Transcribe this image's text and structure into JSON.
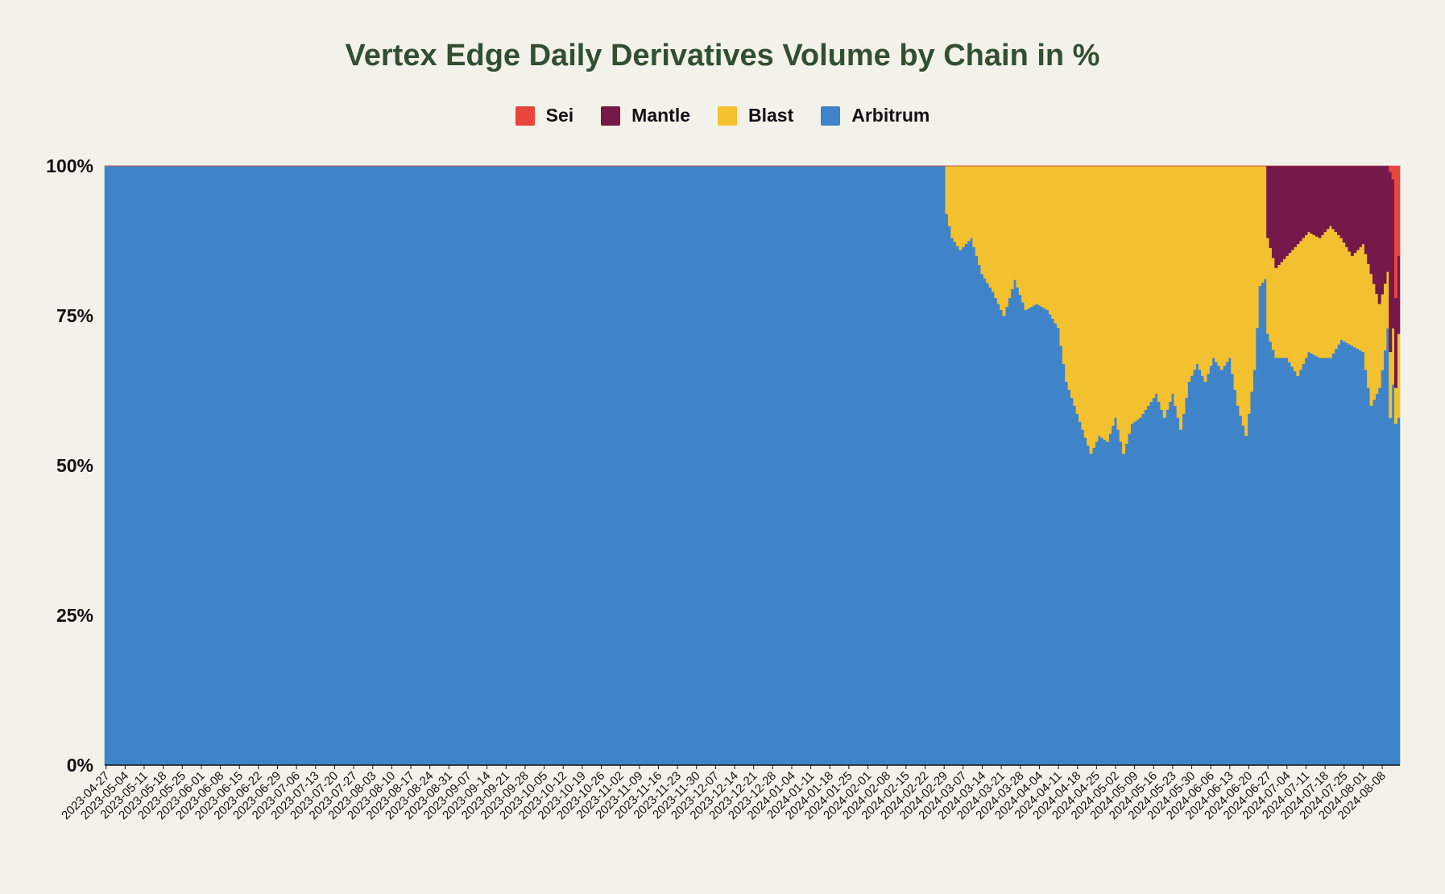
{
  "chart_data": {
    "type": "area",
    "stacked": "percent",
    "title": "Vertex Edge Daily Derivatives Volume by Chain in %",
    "xlabel": "",
    "ylabel": "",
    "ylim": [
      0,
      100
    ],
    "yticks": [
      "0%",
      "25%",
      "50%",
      "75%",
      "100%"
    ],
    "x_start": "2023-04-27",
    "x_end": "2024-08-14",
    "x_ticks": [
      "2023-04-27",
      "2023-05-04",
      "2023-05-11",
      "2023-05-18",
      "2023-05-25",
      "2023-06-01",
      "2023-06-08",
      "2023-06-15",
      "2023-06-22",
      "2023-06-29",
      "2023-07-06",
      "2023-07-13",
      "2023-07-20",
      "2023-07-27",
      "2023-08-03",
      "2023-08-10",
      "2023-08-17",
      "2023-08-24",
      "2023-08-31",
      "2023-09-07",
      "2023-09-14",
      "2023-09-21",
      "2023-09-28",
      "2023-10-05",
      "2023-10-12",
      "2023-10-19",
      "2023-10-26",
      "2023-11-02",
      "2023-11-09",
      "2023-11-16",
      "2023-11-23",
      "2023-11-30",
      "2023-12-07",
      "2023-12-14",
      "2023-12-21",
      "2023-12-28",
      "2024-01-04",
      "2024-01-11",
      "2024-01-18",
      "2024-01-25",
      "2024-02-01",
      "2024-02-08",
      "2024-02-15",
      "2024-02-22",
      "2024-02-29",
      "2024-03-07",
      "2024-03-14",
      "2024-03-21",
      "2024-03-28",
      "2024-04-04",
      "2024-04-11",
      "2024-04-18",
      "2024-04-25",
      "2024-05-02",
      "2024-05-09",
      "2024-05-16",
      "2024-05-23",
      "2024-05-30",
      "2024-06-06",
      "2024-06-13",
      "2024-06-20",
      "2024-06-27",
      "2024-07-04",
      "2024-07-11",
      "2024-07-18",
      "2024-07-25",
      "2024-08-01",
      "2024-08-08"
    ],
    "legend_position": "top",
    "grid": false,
    "series": [
      {
        "name": "Sei",
        "color": "#e8453c",
        "points": [
          [
            "2024-08-11",
            1
          ],
          [
            "2024-08-12",
            2
          ],
          [
            "2024-08-13",
            22
          ],
          [
            "2024-08-14",
            15
          ]
        ]
      },
      {
        "name": "Mantle",
        "color": "#74194a",
        "points": [
          [
            "2024-06-27",
            12
          ],
          [
            "2024-06-30",
            17
          ],
          [
            "2024-07-04",
            15
          ],
          [
            "2024-07-08",
            13
          ],
          [
            "2024-07-12",
            11
          ],
          [
            "2024-07-16",
            12
          ],
          [
            "2024-07-20",
            10
          ],
          [
            "2024-07-24",
            12
          ],
          [
            "2024-07-28",
            15
          ],
          [
            "2024-08-01",
            13
          ],
          [
            "2024-08-04",
            18
          ],
          [
            "2024-08-07",
            23
          ],
          [
            "2024-08-10",
            15
          ],
          [
            "2024-08-11",
            30
          ],
          [
            "2024-08-13",
            15
          ],
          [
            "2024-08-14",
            13
          ]
        ]
      },
      {
        "name": "Blast",
        "color": "#f3c130",
        "points": [
          [
            "2024-02-29",
            0
          ],
          [
            "2024-03-01",
            8
          ],
          [
            "2024-03-03",
            12
          ],
          [
            "2024-03-06",
            14
          ],
          [
            "2024-03-10",
            12
          ],
          [
            "2024-03-14",
            18
          ],
          [
            "2024-03-18",
            21
          ],
          [
            "2024-03-22",
            25
          ],
          [
            "2024-03-26",
            19
          ],
          [
            "2024-03-30",
            24
          ],
          [
            "2024-04-03",
            23
          ],
          [
            "2024-04-07",
            24
          ],
          [
            "2024-04-11",
            27
          ],
          [
            "2024-04-14",
            36
          ],
          [
            "2024-04-17",
            40
          ],
          [
            "2024-04-20",
            44
          ],
          [
            "2024-04-23",
            48
          ],
          [
            "2024-04-26",
            45
          ],
          [
            "2024-04-29",
            46
          ],
          [
            "2024-05-02",
            42
          ],
          [
            "2024-05-05",
            48
          ],
          [
            "2024-05-08",
            43
          ],
          [
            "2024-05-11",
            42
          ],
          [
            "2024-05-14",
            40
          ],
          [
            "2024-05-17",
            38
          ],
          [
            "2024-05-20",
            42
          ],
          [
            "2024-05-23",
            38
          ],
          [
            "2024-05-26",
            44
          ],
          [
            "2024-05-29",
            36
          ],
          [
            "2024-06-01",
            33
          ],
          [
            "2024-06-04",
            36
          ],
          [
            "2024-06-07",
            32
          ],
          [
            "2024-06-10",
            34
          ],
          [
            "2024-06-13",
            32
          ],
          [
            "2024-06-16",
            40
          ],
          [
            "2024-06-19",
            45
          ],
          [
            "2024-06-22",
            34
          ],
          [
            "2024-06-24",
            20
          ],
          [
            "2024-06-27",
            16
          ],
          [
            "2024-06-30",
            15
          ],
          [
            "2024-07-04",
            17
          ],
          [
            "2024-07-08",
            22
          ],
          [
            "2024-07-12",
            20
          ],
          [
            "2024-07-16",
            20
          ],
          [
            "2024-07-20",
            22
          ],
          [
            "2024-07-24",
            17
          ],
          [
            "2024-07-28",
            15
          ],
          [
            "2024-08-01",
            18
          ],
          [
            "2024-08-04",
            22
          ],
          [
            "2024-08-07",
            14
          ],
          [
            "2024-08-10",
            8
          ],
          [
            "2024-08-11",
            11
          ],
          [
            "2024-08-13",
            6
          ],
          [
            "2024-08-14",
            14
          ]
        ]
      },
      {
        "name": "Arbitrum",
        "color": "#3f84c8",
        "points": [
          [
            "2023-04-27",
            100
          ],
          [
            "2024-02-29",
            100
          ],
          [
            "2024-03-01",
            92
          ],
          [
            "2024-03-03",
            88
          ],
          [
            "2024-03-06",
            86
          ],
          [
            "2024-03-10",
            88
          ],
          [
            "2024-03-14",
            82
          ],
          [
            "2024-03-18",
            79
          ],
          [
            "2024-03-22",
            75
          ],
          [
            "2024-03-26",
            81
          ],
          [
            "2024-03-30",
            76
          ],
          [
            "2024-04-03",
            77
          ],
          [
            "2024-04-07",
            76
          ],
          [
            "2024-04-11",
            73
          ],
          [
            "2024-04-14",
            64
          ],
          [
            "2024-04-17",
            60
          ],
          [
            "2024-04-20",
            56
          ],
          [
            "2024-04-23",
            52
          ],
          [
            "2024-04-26",
            55
          ],
          [
            "2024-04-29",
            54
          ],
          [
            "2024-05-02",
            58
          ],
          [
            "2024-05-05",
            52
          ],
          [
            "2024-05-08",
            57
          ],
          [
            "2024-05-11",
            58
          ],
          [
            "2024-05-14",
            60
          ],
          [
            "2024-05-17",
            62
          ],
          [
            "2024-05-20",
            58
          ],
          [
            "2024-05-23",
            62
          ],
          [
            "2024-05-26",
            56
          ],
          [
            "2024-05-29",
            64
          ],
          [
            "2024-06-01",
            67
          ],
          [
            "2024-06-04",
            64
          ],
          [
            "2024-06-07",
            68
          ],
          [
            "2024-06-10",
            66
          ],
          [
            "2024-06-13",
            68
          ],
          [
            "2024-06-16",
            60
          ],
          [
            "2024-06-19",
            55
          ],
          [
            "2024-06-22",
            66
          ],
          [
            "2024-06-24",
            80
          ],
          [
            "2024-06-27",
            72
          ],
          [
            "2024-06-30",
            68
          ],
          [
            "2024-07-04",
            68
          ],
          [
            "2024-07-08",
            65
          ],
          [
            "2024-07-12",
            69
          ],
          [
            "2024-07-16",
            68
          ],
          [
            "2024-07-20",
            68
          ],
          [
            "2024-07-24",
            71
          ],
          [
            "2024-07-28",
            70
          ],
          [
            "2024-08-01",
            69
          ],
          [
            "2024-08-04",
            60
          ],
          [
            "2024-08-07",
            63
          ],
          [
            "2024-08-10",
            62
          ],
          [
            "2024-08-11",
            58
          ],
          [
            "2024-08-13",
            57
          ],
          [
            "2024-08-14",
            58
          ]
        ]
      }
    ]
  }
}
